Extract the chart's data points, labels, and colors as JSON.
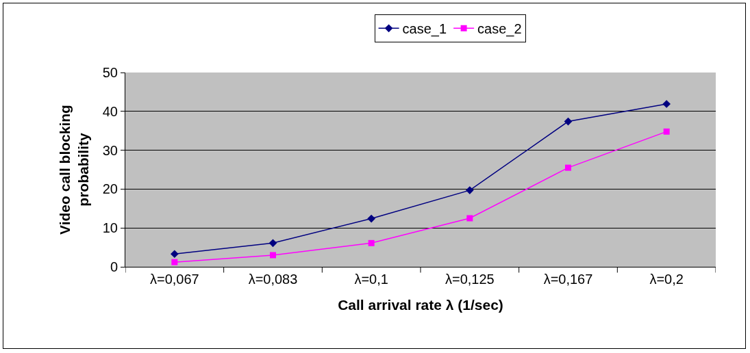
{
  "chart_data": {
    "type": "line",
    "xlabel": "Call arrival rate λ (1/sec)",
    "ylabel": "Video call blocking probability",
    "categories": [
      "λ=0,067",
      "λ=0,083",
      "λ=0,1",
      "λ=0,125",
      "λ=0,167",
      "λ=0,2"
    ],
    "series": [
      {
        "name": "case_1",
        "color": "#000080",
        "marker": "diamond",
        "values": [
          3.3,
          6.1,
          12.4,
          19.7,
          37.4,
          41.9
        ]
      },
      {
        "name": "case_2",
        "color": "#ff00ff",
        "marker": "square",
        "values": [
          1.2,
          3.0,
          6.1,
          12.5,
          25.5,
          34.8
        ]
      }
    ],
    "ylim": [
      0,
      50
    ],
    "yticks": [
      0,
      10,
      20,
      30,
      40,
      50
    ],
    "grid": "y",
    "legend": "top",
    "line_style": "solid"
  }
}
